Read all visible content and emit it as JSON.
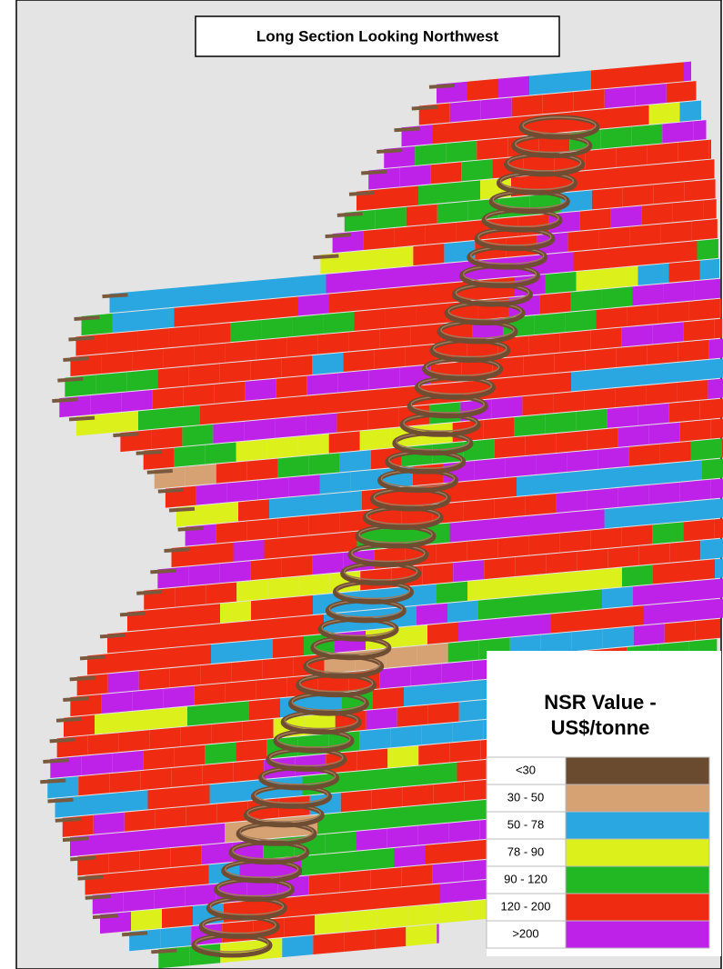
{
  "title": "Long Section Looking Northwest",
  "legend": {
    "title_lines": [
      "NSR Value -",
      "US$/tonne"
    ],
    "items": [
      {
        "label": "<30",
        "color": "#6b4b2f"
      },
      {
        "label": "30 - 50",
        "color": "#d6a274"
      },
      {
        "label": "50 - 78",
        "color": "#2aa6e0"
      },
      {
        "label": "78 - 90",
        "color": "#dcf01c"
      },
      {
        "label": "90 - 120",
        "color": "#21b823"
      },
      {
        "label": "120 - 200",
        "color": "#ef2b12"
      },
      {
        "label": ">200",
        "color": "#be22e8"
      }
    ]
  }
}
